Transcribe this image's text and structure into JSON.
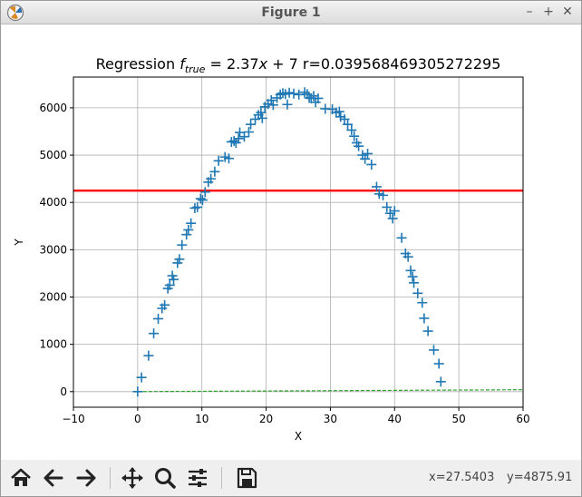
{
  "window": {
    "title": "Figure 1",
    "minimize_glyph": "–",
    "maximize_glyph": "+",
    "close_glyph": "✕"
  },
  "toolbar": {
    "items": [
      "home-icon",
      "back-icon",
      "forward-icon",
      "pan-icon",
      "zoom-icon",
      "configure-subplots-icon",
      "save-icon"
    ],
    "coord_x": "x=27.5403",
    "coord_y": "y=4875.91"
  },
  "chart_data": {
    "type": "scatter",
    "title_prefix": "Regression ",
    "title_f": "f",
    "title_sub": "true",
    "title_eq": " = 2.37",
    "title_x": "x",
    "title_tail": " + 7 r=0.039568469305272295",
    "xlabel": "X",
    "ylabel": "Y",
    "xlim": [
      -10,
      60
    ],
    "ylim": [
      -330,
      6650
    ],
    "xticks": [
      -10,
      0,
      10,
      20,
      30,
      40,
      50,
      60
    ],
    "yticks": [
      0,
      1000,
      2000,
      3000,
      4000,
      5000,
      6000
    ],
    "grid": true,
    "colors": {
      "points": "#1f77b4",
      "hline": "#ff0000",
      "fit": "#2ca02c"
    },
    "horizontal_line": {
      "y": 4250
    },
    "fit_line": {
      "x": [
        0,
        60
      ],
      "y": [
        0,
        40
      ]
    },
    "points": [
      [
        0.0,
        0
      ],
      [
        0.6,
        300
      ],
      [
        1.7,
        760
      ],
      [
        2.5,
        1230
      ],
      [
        3.2,
        1540
      ],
      [
        3.8,
        1760
      ],
      [
        4.2,
        1830
      ],
      [
        4.7,
        2180
      ],
      [
        5.0,
        2250
      ],
      [
        5.4,
        2450
      ],
      [
        5.6,
        2370
      ],
      [
        6.2,
        2720
      ],
      [
        6.5,
        2800
      ],
      [
        6.9,
        3100
      ],
      [
        7.6,
        3320
      ],
      [
        7.9,
        3420
      ],
      [
        8.3,
        3560
      ],
      [
        8.9,
        3880
      ],
      [
        9.3,
        3900
      ],
      [
        9.8,
        4080
      ],
      [
        10.1,
        4050
      ],
      [
        10.5,
        4220
      ],
      [
        11.0,
        4430
      ],
      [
        11.4,
        4500
      ],
      [
        12.0,
        4650
      ],
      [
        12.6,
        4880
      ],
      [
        13.6,
        4960
      ],
      [
        14.2,
        4930
      ],
      [
        14.6,
        5280
      ],
      [
        15.0,
        5300
      ],
      [
        15.3,
        5260
      ],
      [
        15.7,
        5350
      ],
      [
        15.9,
        5480
      ],
      [
        16.6,
        5390
      ],
      [
        17.3,
        5490
      ],
      [
        17.6,
        5650
      ],
      [
        18.3,
        5760
      ],
      [
        18.8,
        5850
      ],
      [
        19.2,
        5900
      ],
      [
        19.4,
        5780
      ],
      [
        19.8,
        6020
      ],
      [
        20.3,
        6080
      ],
      [
        20.8,
        6160
      ],
      [
        21.1,
        6060
      ],
      [
        21.7,
        6210
      ],
      [
        22.2,
        6280
      ],
      [
        22.6,
        6310
      ],
      [
        23.0,
        6290
      ],
      [
        23.3,
        6070
      ],
      [
        23.6,
        6320
      ],
      [
        24.3,
        6300
      ],
      [
        25.1,
        6280
      ],
      [
        26.0,
        6330
      ],
      [
        26.4,
        6290
      ],
      [
        26.7,
        6210
      ],
      [
        27.0,
        6200
      ],
      [
        27.4,
        6250
      ],
      [
        27.7,
        6120
      ],
      [
        28.1,
        6200
      ],
      [
        29.2,
        5980
      ],
      [
        30.3,
        5970
      ],
      [
        30.9,
        5900
      ],
      [
        31.4,
        5920
      ],
      [
        31.6,
        5810
      ],
      [
        32.2,
        5760
      ],
      [
        32.7,
        5650
      ],
      [
        33.3,
        5530
      ],
      [
        33.7,
        5400
      ],
      [
        34.1,
        5260
      ],
      [
        34.4,
        5190
      ],
      [
        35.0,
        5000
      ],
      [
        35.4,
        4920
      ],
      [
        35.8,
        5030
      ],
      [
        36.4,
        4800
      ],
      [
        37.2,
        4330
      ],
      [
        37.6,
        4180
      ],
      [
        38.2,
        4150
      ],
      [
        38.8,
        3900
      ],
      [
        39.3,
        3770
      ],
      [
        39.7,
        3660
      ],
      [
        40.0,
        3820
      ],
      [
        41.1,
        3250
      ],
      [
        41.7,
        2920
      ],
      [
        42.1,
        2850
      ],
      [
        42.5,
        2560
      ],
      [
        42.8,
        2430
      ],
      [
        43.0,
        2300
      ],
      [
        43.6,
        2080
      ],
      [
        44.3,
        1880
      ],
      [
        44.6,
        1550
      ],
      [
        45.2,
        1280
      ],
      [
        46.1,
        880
      ],
      [
        46.9,
        590
      ],
      [
        47.2,
        210
      ]
    ]
  }
}
